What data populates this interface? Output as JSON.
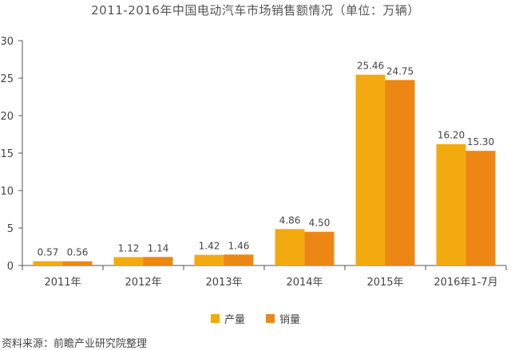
{
  "colors": {
    "production": "#F3AA0E",
    "sales": "#EC8715",
    "axis": "#555555",
    "grid": "#d9d9d9"
  },
  "source": "资料来源：前瞻产业研究院整理",
  "chart_data": {
    "type": "bar",
    "title": "2011-2016年中国电动汽车市场销售额情况（单位：万辆）",
    "categories": [
      "2011年",
      "2012年",
      "2013年",
      "2014年",
      "2015年",
      "2016年1-7月"
    ],
    "series": [
      {
        "name": "产量",
        "values": [
          0.57,
          1.12,
          1.42,
          4.86,
          25.46,
          16.2
        ],
        "labels": [
          "0.57",
          "1.12",
          "1.42",
          "4.86",
          "25.46",
          "16.20"
        ]
      },
      {
        "name": "销量",
        "values": [
          0.56,
          1.14,
          1.46,
          4.5,
          24.75,
          15.3
        ],
        "labels": [
          "0.56",
          "1.14",
          "1.46",
          "4.50",
          "24.75",
          "15.30"
        ]
      }
    ],
    "ylim": [
      0,
      30
    ],
    "yticks": [
      0,
      5,
      10,
      15,
      20,
      25,
      30
    ],
    "xlabel": "",
    "ylabel": "",
    "legend": "bottom-center",
    "grid": false
  }
}
